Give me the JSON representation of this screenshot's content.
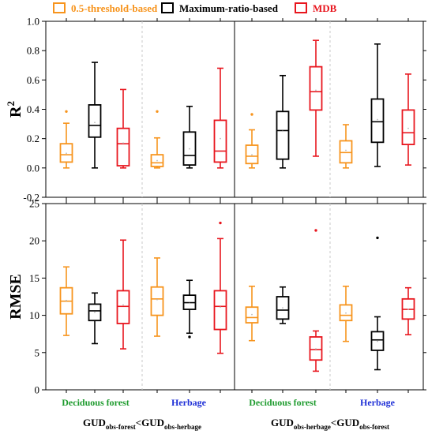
{
  "chart_data": {
    "type": "box",
    "legend": {
      "placement": "top",
      "entries": [
        {
          "name": "0.5-threshold-based",
          "color": "#F7941D"
        },
        {
          "name": "Maximum-ratio-based",
          "color": "#000000"
        },
        {
          "name": "MDB",
          "color": "#E8161E"
        }
      ]
    },
    "groups": [
      {
        "panel": 0,
        "category": "Deciduous forest",
        "category_color": "#1E9B2E"
      },
      {
        "panel": 0,
        "category": "Herbage",
        "category_color": "#1E2FD6"
      },
      {
        "panel": 1,
        "category": "Deciduous forest",
        "category_color": "#1E9B2E"
      },
      {
        "panel": 1,
        "category": "Herbage",
        "category_color": "#1E2FD6"
      }
    ],
    "panel_labels": [
      {
        "main": "GUD",
        "sub1": "obs-forest",
        "op": "<GUD",
        "sub2": "obs-herbage"
      },
      {
        "main": "GUD",
        "sub1": "obs-herbage",
        "op": "<GUD",
        "sub2": "obs-forest"
      }
    ],
    "plots": [
      {
        "id": "r2",
        "ylabel": "R",
        "ylabel_sup": "2",
        "ylim": [
          -0.2,
          1.0
        ],
        "yticks": [
          "-0.2",
          "0.0",
          "0.2",
          "0.4",
          "0.6",
          "0.8",
          "1.0"
        ],
        "tick_values": [
          -0.2,
          0.0,
          0.2,
          0.4,
          0.6,
          0.8,
          1.0
        ],
        "boxes": [
          {
            "group": 0,
            "series": 0,
            "whislo": 0.0,
            "q1": 0.04,
            "med": 0.09,
            "q3": 0.165,
            "whishi": 0.305,
            "mean": 0.1,
            "fliers": [
              0.385
            ]
          },
          {
            "group": 0,
            "series": 1,
            "whislo": 0.0,
            "q1": 0.21,
            "med": 0.29,
            "q3": 0.43,
            "whishi": 0.72,
            "mean": 0.31,
            "fliers": []
          },
          {
            "group": 0,
            "series": 2,
            "whislo": 0.0,
            "q1": 0.015,
            "med": 0.165,
            "q3": 0.27,
            "whishi": 0.535,
            "mean": 0.17,
            "fliers": []
          },
          {
            "group": 1,
            "series": 0,
            "whislo": 0.0,
            "q1": 0.01,
            "med": 0.035,
            "q3": 0.09,
            "whishi": 0.205,
            "mean": 0.05,
            "fliers": [
              0.385
            ]
          },
          {
            "group": 1,
            "series": 1,
            "whislo": 0.0,
            "q1": 0.02,
            "med": 0.085,
            "q3": 0.245,
            "whishi": 0.42,
            "mean": 0.13,
            "fliers": []
          },
          {
            "group": 1,
            "series": 2,
            "whislo": 0.0,
            "q1": 0.04,
            "med": 0.115,
            "q3": 0.325,
            "whishi": 0.68,
            "mean": 0.2,
            "fliers": []
          },
          {
            "group": 2,
            "series": 0,
            "whislo": 0.0,
            "q1": 0.03,
            "med": 0.08,
            "q3": 0.155,
            "whishi": 0.26,
            "mean": 0.09,
            "fliers": [
              0.365
            ]
          },
          {
            "group": 2,
            "series": 1,
            "whislo": 0.0,
            "q1": 0.06,
            "med": 0.255,
            "q3": 0.385,
            "whishi": 0.63,
            "mean": 0.25,
            "fliers": []
          },
          {
            "group": 2,
            "series": 2,
            "whislo": 0.08,
            "q1": 0.395,
            "med": 0.52,
            "q3": 0.69,
            "whishi": 0.87,
            "mean": 0.53,
            "fliers": []
          },
          {
            "group": 3,
            "series": 0,
            "whislo": 0.0,
            "q1": 0.035,
            "med": 0.105,
            "q3": 0.185,
            "whishi": 0.295,
            "mean": 0.12,
            "fliers": []
          },
          {
            "group": 3,
            "series": 1,
            "whislo": 0.01,
            "q1": 0.175,
            "med": 0.315,
            "q3": 0.47,
            "whishi": 0.845,
            "mean": 0.33,
            "fliers": []
          },
          {
            "group": 3,
            "series": 2,
            "whislo": 0.02,
            "q1": 0.16,
            "med": 0.24,
            "q3": 0.395,
            "whishi": 0.64,
            "mean": 0.27,
            "fliers": []
          }
        ]
      },
      {
        "id": "rmse",
        "ylabel": "RMSE",
        "ylabel_sup": "",
        "ylim": [
          0,
          25
        ],
        "yticks": [
          "0",
          "5",
          "10",
          "15",
          "20",
          "25"
        ],
        "tick_values": [
          0,
          5,
          10,
          15,
          20,
          25
        ],
        "boxes": [
          {
            "group": 0,
            "series": 0,
            "whislo": 7.3,
            "q1": 10.2,
            "med": 11.9,
            "q3": 13.7,
            "whishi": 16.5,
            "mean": 12.0,
            "fliers": []
          },
          {
            "group": 0,
            "series": 1,
            "whislo": 6.2,
            "q1": 9.3,
            "med": 10.6,
            "q3": 11.5,
            "whishi": 13.0,
            "mean": 10.4,
            "fliers": []
          },
          {
            "group": 0,
            "series": 2,
            "whislo": 5.5,
            "q1": 8.9,
            "med": 11.2,
            "q3": 13.3,
            "whishi": 20.1,
            "mean": 11.4,
            "fliers": []
          },
          {
            "group": 1,
            "series": 0,
            "whislo": 7.2,
            "q1": 10.0,
            "med": 12.2,
            "q3": 13.8,
            "whishi": 17.7,
            "mean": 12.1,
            "fliers": []
          },
          {
            "group": 1,
            "series": 1,
            "whislo": 7.6,
            "q1": 10.8,
            "med": 11.7,
            "q3": 12.7,
            "whishi": 14.7,
            "mean": 11.6,
            "fliers": [
              7.1
            ]
          },
          {
            "group": 1,
            "series": 2,
            "whislo": 4.9,
            "q1": 8.1,
            "med": 11.2,
            "q3": 13.3,
            "whishi": 20.3,
            "mean": 11.1,
            "fliers": [
              22.4
            ]
          },
          {
            "group": 2,
            "series": 0,
            "whislo": 6.6,
            "q1": 9.0,
            "med": 9.7,
            "q3": 11.1,
            "whishi": 13.9,
            "mean": 10.1,
            "fliers": []
          },
          {
            "group": 2,
            "series": 1,
            "whislo": 8.9,
            "q1": 9.5,
            "med": 10.7,
            "q3": 12.5,
            "whishi": 13.8,
            "mean": 11.0,
            "fliers": []
          },
          {
            "group": 2,
            "series": 2,
            "whislo": 2.5,
            "q1": 4.0,
            "med": 5.4,
            "q3": 7.1,
            "whishi": 7.9,
            "mean": 5.5,
            "fliers": [
              21.4
            ]
          },
          {
            "group": 3,
            "series": 0,
            "whislo": 6.5,
            "q1": 9.3,
            "med": 10.0,
            "q3": 11.4,
            "whishi": 13.9,
            "mean": 10.3,
            "fliers": []
          },
          {
            "group": 3,
            "series": 1,
            "whislo": 2.7,
            "q1": 5.3,
            "med": 6.7,
            "q3": 7.8,
            "whishi": 9.8,
            "mean": 6.5,
            "fliers": [
              20.4
            ]
          },
          {
            "group": 3,
            "series": 2,
            "whislo": 7.4,
            "q1": 9.5,
            "med": 10.8,
            "q3": 12.2,
            "whishi": 13.7,
            "mean": 10.8,
            "fliers": []
          }
        ]
      }
    ]
  }
}
